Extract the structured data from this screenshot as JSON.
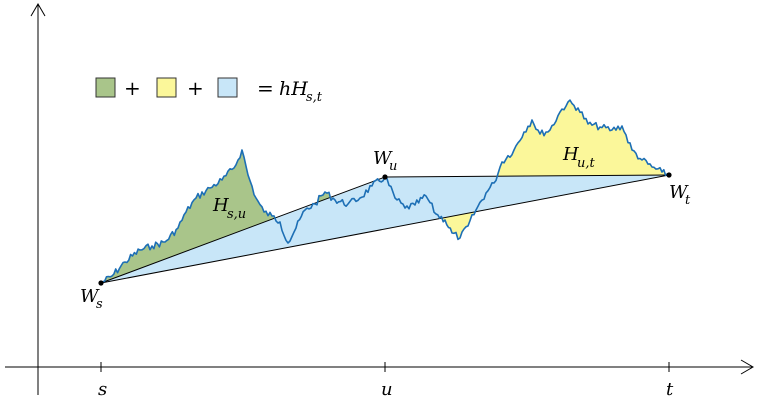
{
  "figure": {
    "axis_ticks": {
      "s": "s",
      "u": "u",
      "t": "t"
    },
    "point_labels": {
      "Ws": {
        "base": "W",
        "sub": "s"
      },
      "Wu": {
        "base": "W",
        "sub": "u"
      },
      "Wt": {
        "base": "W",
        "sub": "t"
      }
    },
    "area_labels": {
      "Hsu": {
        "base": "H",
        "sub": "s,u"
      },
      "Hut": {
        "base": "H",
        "sub": "u,t"
      }
    },
    "legend": {
      "plus": "+",
      "equals": "=",
      "rhs_prefix": "hH",
      "rhs_sub": "s,t"
    },
    "colors": {
      "green_fill": "#a9c58a",
      "yellow_fill": "#fbf79a",
      "blue_fill": "#c8e6f8",
      "path_stroke": "#1d6fb5",
      "line_stroke": "#000000"
    }
  }
}
